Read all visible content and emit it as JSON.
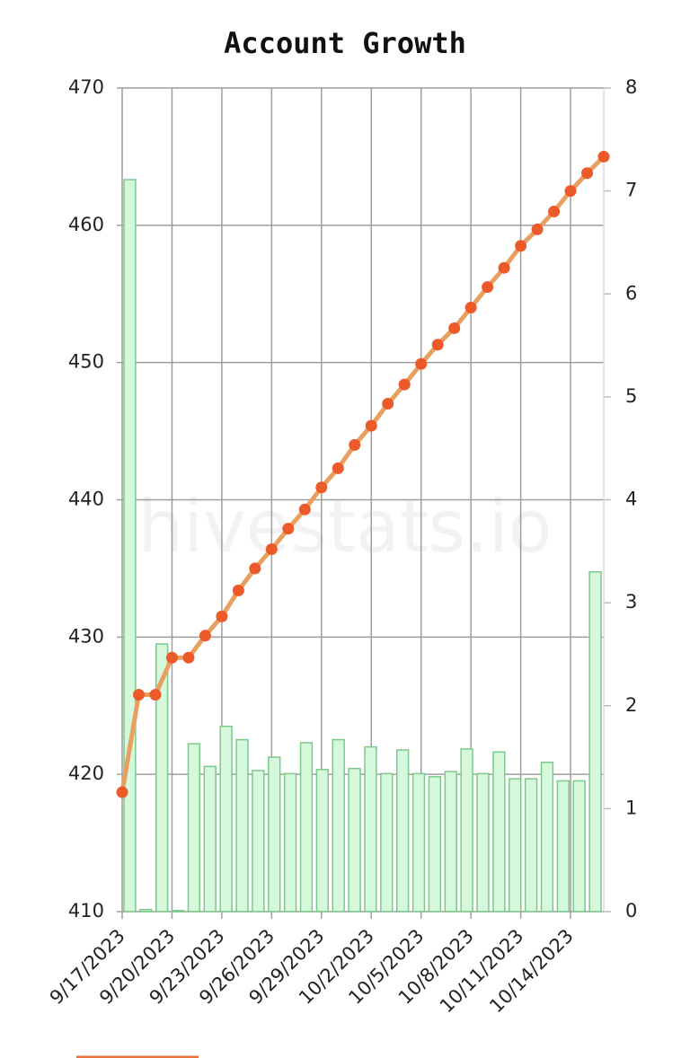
{
  "chart_data": {
    "type": "bar-line",
    "title": "Account Growth",
    "watermark": "hivestats.io",
    "categories": [
      "9/17/2023",
      null,
      null,
      "9/20/2023",
      null,
      null,
      "9/23/2023",
      null,
      null,
      "9/26/2023",
      null,
      null,
      "9/29/2023",
      null,
      null,
      "10/2/2023",
      null,
      null,
      "10/5/2023",
      null,
      null,
      "10/8/2023",
      null,
      null,
      "10/11/2023",
      null,
      null,
      "10/14/2023",
      null,
      null
    ],
    "series": [
      {
        "type": "line",
        "axis": "y",
        "color": "#e8a060",
        "point_color": "#ec5a2a",
        "values": [
          418.7,
          425.8,
          425.8,
          428.5,
          428.5,
          430.1,
          431.5,
          433.4,
          435.0,
          436.4,
          437.9,
          439.3,
          440.9,
          442.3,
          444.0,
          445.4,
          447.0,
          448.4,
          449.9,
          451.3,
          452.5,
          454.0,
          455.5,
          456.9,
          458.5,
          459.7,
          461.0,
          462.5,
          463.8,
          465.0
        ]
      },
      {
        "type": "bar",
        "axis": "y2",
        "color": "#d6f8dc",
        "stroke": "#7cc98a",
        "values": [
          7.11,
          0.02,
          2.6,
          0.01,
          1.63,
          1.41,
          1.8,
          1.67,
          1.37,
          1.5,
          1.34,
          1.64,
          1.38,
          1.67,
          1.39,
          1.6,
          1.34,
          1.57,
          1.34,
          1.31,
          1.36,
          1.58,
          1.34,
          1.55,
          1.29,
          1.29,
          1.45,
          1.27,
          1.27,
          3.3
        ]
      }
    ],
    "ylim": [
      410,
      470
    ],
    "yticks": [
      410,
      420,
      430,
      440,
      450,
      460,
      470
    ],
    "y2lim": [
      0,
      8
    ],
    "y2ticks": [
      0,
      1,
      2,
      3,
      4,
      5,
      6,
      7,
      8
    ],
    "grid": true
  }
}
